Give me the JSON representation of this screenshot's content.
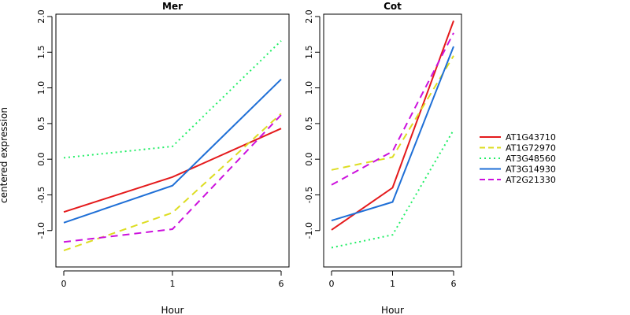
{
  "chart_data": {
    "type": "line",
    "ylabel": "centered expression",
    "xlabel": "Hour",
    "x": [
      "0",
      "1",
      "6"
    ],
    "ylim": [
      -1.4,
      2.0
    ],
    "yticks": [
      -1.0,
      -0.5,
      0.0,
      0.5,
      1.0,
      1.5,
      2.0
    ],
    "ytick_labels": [
      "-1.0",
      "-0.5",
      "0.0",
      "0.5",
      "1.0",
      "1.5",
      "2.0"
    ],
    "legend_position": "right",
    "series_styles": [
      {
        "name": "AT1G43710",
        "color": "#e41a1c",
        "dash": "solid"
      },
      {
        "name": "AT1G72970",
        "color": "#dddd22",
        "dash": "dashed"
      },
      {
        "name": "AT3G48560",
        "color": "#22ee66",
        "dash": "dotted"
      },
      {
        "name": "AT3G14930",
        "color": "#1f6fd6",
        "dash": "solid"
      },
      {
        "name": "AT2G21330",
        "color": "#cc11dd",
        "dash": "dashed"
      }
    ],
    "panels": [
      {
        "title": "Mer",
        "series": [
          {
            "name": "AT1G43710",
            "values": [
              -0.74,
              -0.25,
              0.43
            ]
          },
          {
            "name": "AT1G72970",
            "values": [
              -1.28,
              -0.75,
              0.64
            ]
          },
          {
            "name": "AT3G48560",
            "values": [
              0.02,
              0.18,
              1.66
            ]
          },
          {
            "name": "AT3G14930",
            "values": [
              -0.89,
              -0.37,
              1.12
            ]
          },
          {
            "name": "AT2G21330",
            "values": [
              -1.16,
              -0.98,
              0.62
            ]
          }
        ]
      },
      {
        "title": "Cot",
        "series": [
          {
            "name": "AT1G43710",
            "values": [
              -0.99,
              -0.4,
              1.94
            ]
          },
          {
            "name": "AT1G72970",
            "values": [
              -0.15,
              0.03,
              1.45
            ]
          },
          {
            "name": "AT3G48560",
            "values": [
              -1.24,
              -1.06,
              0.41
            ]
          },
          {
            "name": "AT3G14930",
            "values": [
              -0.86,
              -0.6,
              1.58
            ]
          },
          {
            "name": "AT2G21330",
            "values": [
              -0.36,
              0.11,
              1.77
            ]
          }
        ]
      }
    ]
  }
}
